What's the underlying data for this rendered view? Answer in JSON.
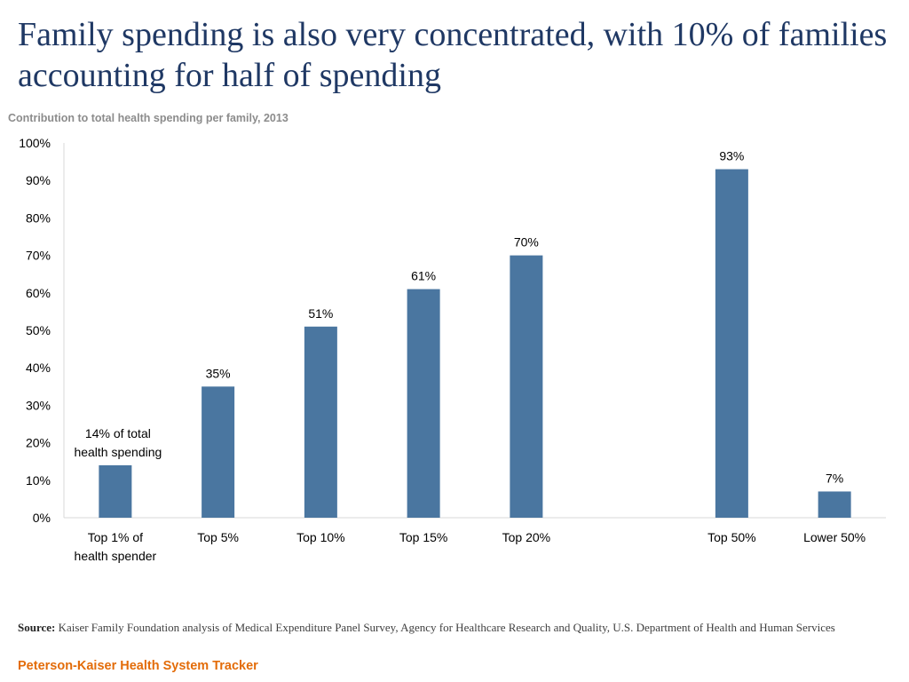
{
  "title": "Family spending is also very concentrated, with 10% of families accounting for half of spending",
  "colors": {
    "bar": "#4a76a0",
    "title": "#1f3864",
    "brand": "#e36c09"
  },
  "chart_data": {
    "type": "bar",
    "title": "Contribution to total health spending per family, 2013",
    "categories": [
      "Top 1% of health spender",
      "Top 5%",
      "Top 10%",
      "Top 15%",
      "Top 20%",
      "",
      "Top 50%",
      "Lower 50%"
    ],
    "values": [
      14,
      35,
      51,
      61,
      70,
      null,
      93,
      7
    ],
    "data_labels": [
      "14% of total health spending",
      "35%",
      "51%",
      "61%",
      "70%",
      "",
      "93%",
      "7%"
    ],
    "yticks": [
      "100%",
      "90%",
      "80%",
      "70%",
      "60%",
      "50%",
      "40%",
      "30%",
      "20%",
      "10%",
      "0%"
    ],
    "ylim": [
      0,
      100
    ],
    "xlabel": "",
    "ylabel": "",
    "grid": false
  },
  "source": {
    "label": "Source:",
    "text": "Kaiser Family Foundation analysis of Medical Expenditure Panel Survey, Agency for Healthcare Research and Quality, U.S. Department of Health and Human Services"
  },
  "brand": "Peterson-Kaiser Health System Tracker"
}
